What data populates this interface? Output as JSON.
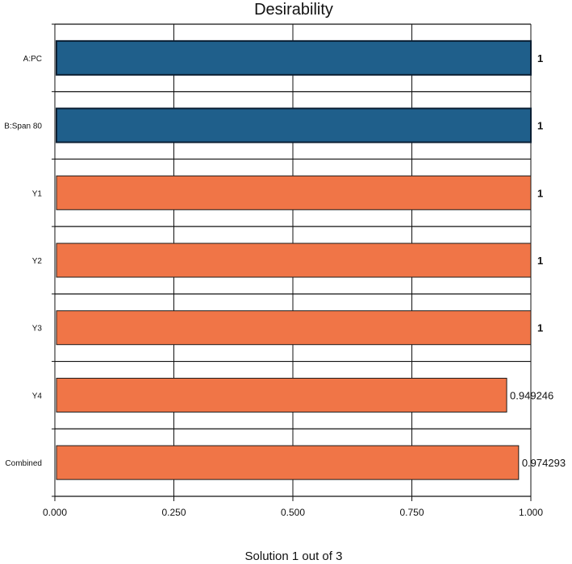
{
  "chart_data": {
    "type": "bar",
    "orientation": "horizontal",
    "title": "Desirability",
    "footer": "Solution 1 out of 3",
    "categories": [
      "A:PC",
      "B:Span 80",
      "Y1",
      "Y2",
      "Y3",
      "Y4",
      "Combined"
    ],
    "values": [
      1,
      1,
      1,
      1,
      1,
      0.949246,
      0.974293
    ],
    "value_labels": [
      "1",
      "1",
      "1",
      "1",
      "1",
      "0.949246",
      "0.974293"
    ],
    "bar_colors": [
      "#1f5f8b",
      "#1f5f8b",
      "#f07547",
      "#f07547",
      "#f07547",
      "#f07547",
      "#f07547"
    ],
    "xlim": [
      0,
      1
    ],
    "xticks": [
      0,
      0.25,
      0.5,
      0.75,
      1
    ],
    "xtick_labels": [
      "0.000",
      "0.250",
      "0.500",
      "0.750",
      "1.000"
    ],
    "grid": true,
    "xlabel": "",
    "ylabel": ""
  }
}
